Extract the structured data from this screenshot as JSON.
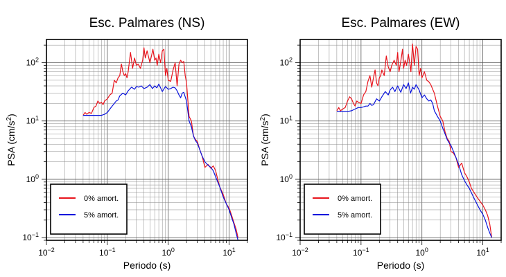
{
  "chart_data": [
    {
      "type": "line",
      "title": "Esc. Palmares (NS)",
      "xlabel": "Periodo (s)",
      "ylabel_main": "PSA (cm/s",
      "ylabel_sup": "2",
      "ylabel_close": ")",
      "x_scale": "log",
      "y_scale": "log",
      "xlim": [
        0.01,
        20
      ],
      "ylim": [
        0.09,
        250
      ],
      "grid": true,
      "legend_position": "bottom-left",
      "x_ticks": [
        {
          "value": 0.01,
          "base": "10",
          "exp": "−2"
        },
        {
          "value": 0.1,
          "base": "10",
          "exp": "−1"
        },
        {
          "value": 1,
          "base": "10",
          "exp": "0"
        },
        {
          "value": 10,
          "base": "10",
          "exp": "1"
        }
      ],
      "y_ticks": [
        {
          "value": 0.1,
          "base": "10",
          "exp": "−1"
        },
        {
          "value": 1,
          "base": "10",
          "exp": "0"
        },
        {
          "value": 10,
          "base": "10",
          "exp": "1"
        },
        {
          "value": 100,
          "base": "10",
          "exp": "2"
        }
      ],
      "series": [
        {
          "name": "0% amort.",
          "color": "#e8141c",
          "x": [
            0.04,
            0.043,
            0.046,
            0.05,
            0.055,
            0.06,
            0.065,
            0.07,
            0.075,
            0.08,
            0.085,
            0.09,
            0.1,
            0.11,
            0.12,
            0.13,
            0.14,
            0.15,
            0.16,
            0.17,
            0.18,
            0.19,
            0.2,
            0.21,
            0.22,
            0.24,
            0.26,
            0.28,
            0.3,
            0.32,
            0.35,
            0.38,
            0.4,
            0.42,
            0.45,
            0.48,
            0.5,
            0.53,
            0.56,
            0.6,
            0.63,
            0.66,
            0.7,
            0.75,
            0.8,
            0.85,
            0.9,
            0.95,
            1.0,
            1.1,
            1.2,
            1.3,
            1.4,
            1.5,
            1.6,
            1.7,
            1.8,
            1.9,
            2.0,
            2.2,
            2.4,
            2.6,
            2.8,
            3.0,
            3.3,
            3.6,
            4.0,
            4.5,
            5.0,
            5.5,
            6.0,
            6.5,
            7.0,
            8.0,
            9.0,
            10.0,
            11.0,
            12.0,
            13.0,
            14.0
          ],
          "y": [
            12.5,
            14,
            13,
            14,
            13.5,
            17,
            18,
            22,
            20,
            21,
            19,
            22,
            24,
            28,
            30,
            50,
            45,
            55,
            60,
            95,
            70,
            60,
            65,
            55,
            70,
            150,
            80,
            120,
            90,
            95,
            80,
            110,
            180,
            120,
            160,
            120,
            100,
            130,
            170,
            110,
            120,
            90,
            140,
            100,
            160,
            170,
            60,
            80,
            50,
            48,
            75,
            100,
            40,
            95,
            110,
            100,
            105,
            60,
            45,
            12,
            10,
            5.5,
            4.8,
            4.5,
            3.2,
            2.5,
            1.6,
            1.8,
            1.55,
            1.7,
            1.4,
            1.0,
            0.75,
            0.55,
            0.38,
            0.32,
            0.24,
            0.18,
            0.14,
            0.1
          ]
        },
        {
          "name": "5% amort.",
          "color": "#0a14dc",
          "x": [
            0.04,
            0.05,
            0.06,
            0.07,
            0.08,
            0.09,
            0.1,
            0.11,
            0.12,
            0.13,
            0.14,
            0.15,
            0.16,
            0.18,
            0.2,
            0.22,
            0.25,
            0.28,
            0.3,
            0.33,
            0.36,
            0.4,
            0.45,
            0.5,
            0.55,
            0.6,
            0.65,
            0.7,
            0.8,
            0.9,
            1.0,
            1.1,
            1.2,
            1.3,
            1.4,
            1.5,
            1.6,
            1.7,
            1.8,
            2.0,
            2.2,
            2.4,
            2.6,
            2.8,
            3.0,
            3.3,
            3.6,
            4.0,
            4.5,
            5.0,
            5.5,
            6.0,
            7.0,
            8.0,
            9.0,
            10.0,
            11.0,
            12.0,
            13.0,
            14.0
          ],
          "y": [
            12.5,
            12.5,
            12.5,
            12.5,
            12.5,
            13,
            14,
            16,
            18,
            20,
            22,
            23,
            27,
            30,
            28,
            33,
            38,
            35,
            39,
            38,
            40,
            36,
            38,
            42,
            36,
            40,
            37,
            43,
            32,
            39,
            35,
            36,
            38,
            37,
            33,
            28,
            25,
            30,
            31,
            22,
            10,
            8,
            5.5,
            4.6,
            4.2,
            3.2,
            2.5,
            2.0,
            1.75,
            1.6,
            1.4,
            1.1,
            0.75,
            0.5,
            0.38,
            0.3,
            0.22,
            0.17,
            0.12,
            0.09
          ]
        }
      ]
    },
    {
      "type": "line",
      "title": "Esc. Palmares (EW)",
      "xlabel": "Periodo (s)",
      "ylabel_main": "PSA (cm/s",
      "ylabel_sup": "2",
      "ylabel_close": ")",
      "x_scale": "log",
      "y_scale": "log",
      "xlim": [
        0.01,
        20
      ],
      "ylim": [
        0.09,
        250
      ],
      "grid": true,
      "legend_position": "bottom-left",
      "x_ticks": [
        {
          "value": 0.01,
          "base": "10",
          "exp": "−2"
        },
        {
          "value": 0.1,
          "base": "10",
          "exp": "−1"
        },
        {
          "value": 1,
          "base": "10",
          "exp": "0"
        },
        {
          "value": 10,
          "base": "10",
          "exp": "1"
        }
      ],
      "y_ticks": [
        {
          "value": 0.1,
          "base": "10",
          "exp": "−1"
        },
        {
          "value": 1,
          "base": "10",
          "exp": "0"
        },
        {
          "value": 10,
          "base": "10",
          "exp": "1"
        },
        {
          "value": 100,
          "base": "10",
          "exp": "2"
        }
      ],
      "series": [
        {
          "name": "0% amort.",
          "color": "#e8141c",
          "x": [
            0.04,
            0.043,
            0.046,
            0.05,
            0.055,
            0.06,
            0.065,
            0.07,
            0.075,
            0.08,
            0.085,
            0.09,
            0.1,
            0.11,
            0.12,
            0.13,
            0.14,
            0.15,
            0.16,
            0.17,
            0.18,
            0.19,
            0.2,
            0.21,
            0.22,
            0.24,
            0.26,
            0.28,
            0.3,
            0.32,
            0.35,
            0.38,
            0.4,
            0.42,
            0.45,
            0.48,
            0.5,
            0.53,
            0.56,
            0.6,
            0.63,
            0.66,
            0.7,
            0.72,
            0.75,
            0.8,
            0.85,
            0.9,
            0.95,
            1.0,
            1.1,
            1.2,
            1.3,
            1.4,
            1.5,
            1.6,
            1.8,
            2.0,
            2.2,
            2.4,
            2.6,
            2.8,
            3.0,
            3.3,
            3.6,
            4.0,
            4.5,
            5.0,
            5.5,
            6.0,
            6.5,
            7.0,
            8.0,
            9.0,
            10.0,
            11.0,
            12.0,
            13.0,
            14.0
          ],
          "y": [
            15,
            17,
            15,
            16,
            17,
            22,
            26,
            24,
            20,
            18,
            22,
            21,
            20,
            28,
            32,
            48,
            60,
            38,
            55,
            75,
            45,
            40,
            55,
            60,
            75,
            60,
            130,
            85,
            70,
            90,
            110,
            90,
            150,
            70,
            105,
            170,
            80,
            110,
            90,
            140,
            100,
            70,
            210,
            150,
            90,
            190,
            170,
            60,
            80,
            55,
            70,
            50,
            47,
            42,
            35,
            30,
            18,
            12,
            10,
            6.5,
            5.0,
            4.5,
            3.0,
            2.8,
            2.4,
            1.6,
            1.9,
            1.3,
            1.1,
            0.9,
            0.7,
            0.62,
            0.5,
            0.42,
            0.36,
            0.3,
            0.24,
            0.17,
            0.1
          ]
        },
        {
          "name": "5% amort.",
          "color": "#0a14dc",
          "x": [
            0.04,
            0.05,
            0.06,
            0.07,
            0.08,
            0.09,
            0.1,
            0.11,
            0.12,
            0.13,
            0.14,
            0.15,
            0.16,
            0.18,
            0.2,
            0.22,
            0.25,
            0.28,
            0.3,
            0.33,
            0.36,
            0.4,
            0.45,
            0.5,
            0.55,
            0.6,
            0.65,
            0.7,
            0.75,
            0.8,
            0.9,
            1.0,
            1.1,
            1.2,
            1.3,
            1.4,
            1.5,
            1.6,
            1.8,
            2.0,
            2.2,
            2.4,
            2.6,
            2.8,
            3.0,
            3.3,
            3.6,
            4.0,
            4.5,
            5.0,
            5.5,
            6.0,
            7.0,
            8.0,
            9.0,
            10.0,
            11.0,
            12.0,
            13.0,
            14.0
          ],
          "y": [
            14.5,
            14.5,
            14.5,
            15,
            16,
            17,
            17,
            17.5,
            18,
            18,
            20,
            18.5,
            19,
            24,
            22,
            26,
            32,
            28,
            34,
            38,
            32,
            40,
            31,
            42,
            36,
            45,
            30,
            38,
            35,
            42,
            34,
            25,
            28,
            24,
            22,
            23,
            20,
            15,
            12,
            10,
            7.5,
            6.0,
            4.8,
            4.2,
            3.8,
            3.0,
            2.4,
            1.8,
            1.2,
            0.95,
            0.8,
            0.7,
            0.5,
            0.38,
            0.3,
            0.25,
            0.2,
            0.15,
            0.12,
            0.1
          ]
        }
      ]
    }
  ]
}
